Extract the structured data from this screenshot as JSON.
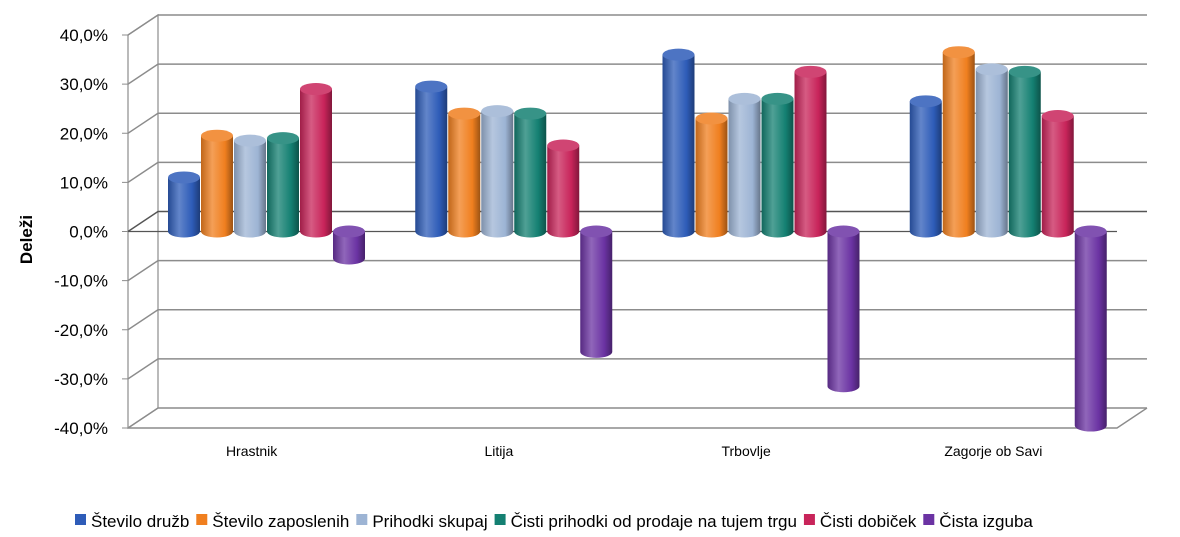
{
  "chart_data": {
    "type": "bar",
    "style": "3d-cylinder",
    "ylabel": "Deleži",
    "xlabel": "",
    "ylim": [
      -0.4,
      0.4
    ],
    "yticks": [
      0.4,
      0.3,
      0.2,
      0.1,
      0.0,
      -0.1,
      -0.2,
      -0.3,
      -0.4
    ],
    "ytick_labels": [
      "40,0%",
      "30,0%",
      "20,0%",
      "10,0%",
      "0,0%",
      "-10,0%",
      "-20,0%",
      "-30,0%",
      "-40,0%"
    ],
    "grid": true,
    "legend": "bottom",
    "categories": [
      "Hrastnik",
      "Litija",
      "Trbovlje",
      "Zagorje ob Savi"
    ],
    "series": [
      {
        "name": "Število družb",
        "color": "#2E5CB8",
        "values": [
          0.11,
          0.295,
          0.36,
          0.265
        ]
      },
      {
        "name": "Število zaposlenih",
        "color": "#F07F1F",
        "values": [
          0.195,
          0.24,
          0.23,
          0.365
        ]
      },
      {
        "name": "Prihodki skupaj",
        "color": "#9DB4D4",
        "values": [
          0.185,
          0.245,
          0.27,
          0.33
        ]
      },
      {
        "name": "Čisti prihodki od prodaje na tujem trgu",
        "color": "#148072",
        "values": [
          0.19,
          0.24,
          0.27,
          0.325
        ]
      },
      {
        "name": "Čisti dobiček",
        "color": "#C8245A",
        "values": [
          0.29,
          0.175,
          0.325,
          0.235
        ]
      },
      {
        "name": "Čista izguba",
        "color": "#6B33A3",
        "values": [
          -0.055,
          -0.245,
          -0.315,
          -0.395
        ]
      }
    ]
  }
}
